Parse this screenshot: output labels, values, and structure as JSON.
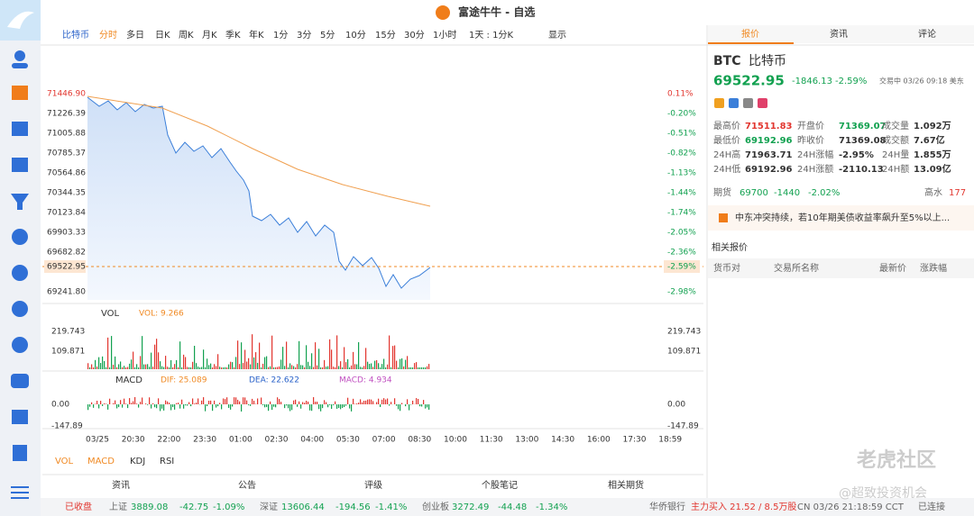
{
  "top_bar": {
    "title": "富途牛牛 - 自选"
  },
  "toolbar": {
    "symbol": "比特币",
    "items": [
      "分时",
      "多日",
      "日K",
      "周K",
      "月K",
      "季K",
      "年K",
      "1分",
      "3分",
      "5分",
      "10分",
      "15分",
      "30分",
      "1小时",
      "1天 : 1分K",
      "显示"
    ]
  },
  "chart": {
    "price_labels": [
      "71446.90",
      "71226.39",
      "71005.88",
      "70785.37",
      "70564.86",
      "70344.35",
      "70123.84",
      "69903.33",
      "69682.82",
      "69241.80"
    ],
    "pct_labels": [
      "0.11%",
      "-0.20%",
      "-0.51%",
      "-0.82%",
      "-1.13%",
      "-1.44%",
      "-1.74%",
      "-2.05%",
      "-2.36%",
      "-2.98%"
    ],
    "current_price": "69522.95",
    "current_pct": "-2.59%",
    "vol": {
      "name": "VOL",
      "value": "VOL: 9.266",
      "ticks": [
        "219.743",
        "109.871"
      ]
    },
    "macd": {
      "name": "MACD",
      "dif": "DIF: 25.089",
      "dea": "DEA: 22.622",
      "macd": "MACD: 4.934",
      "ticks": [
        "0.00",
        "-147.89"
      ]
    },
    "time_labels": [
      "03/25",
      "20:30",
      "22:00",
      "23:30",
      "01:00",
      "02:30",
      "04:00",
      "05:30",
      "07:00",
      "08:30",
      "10:00",
      "11:30",
      "13:00",
      "14:30",
      "16:00",
      "17:30",
      "18:59"
    ],
    "indicator_tabs": [
      "VOL",
      "MACD",
      "KDJ",
      "RSI"
    ]
  },
  "bottom_tabs": [
    "资讯",
    "公告",
    "评级",
    "个股笔记",
    "相关期货"
  ],
  "right_panel": {
    "tabs": [
      "报价",
      "资讯",
      "评论"
    ],
    "code": "BTC",
    "name": "比特币",
    "price": "69522.95",
    "change": "-1846.13",
    "change_pct": "-2.59%",
    "status": "交易中 03/26 09:18 美东",
    "stats": [
      [
        "最高价",
        "71511.83",
        "开盘价",
        "71369.07",
        "成交量",
        "1.092万"
      ],
      [
        "最低价",
        "69192.96",
        "昨收价",
        "71369.08",
        "成交额",
        "7.67亿"
      ],
      [
        "24H高",
        "71963.71",
        "24H涨幅",
        "-2.95%",
        "24H量",
        "1.855万"
      ],
      [
        "24H低",
        "69192.96",
        "24H涨额",
        "-2110.13",
        "24H额",
        "13.09亿"
      ]
    ],
    "futures": [
      "期货",
      "69700",
      "-1440",
      "-2.02%",
      "高水",
      "177"
    ],
    "news": "中东冲突持续，若10年期美债收益率飙升至5%以上...",
    "related_title": "相关报价",
    "related_headers": [
      "货币对",
      "交易所名称",
      "最新价",
      "涨跌幅"
    ]
  },
  "status_bar": {
    "items": [
      "已收盘",
      "上证",
      "3889.08",
      "-42.75",
      "-1.09%",
      "深证",
      "13606.44",
      "-194.56",
      "-1.41%",
      "创业板",
      "3272.49",
      "-44.48",
      "-1.34%",
      "华侨银行",
      "主力买入 21.52 / 8.5万股",
      "CN 03/26 21:18:59 CCT",
      "已连接"
    ]
  },
  "watermark": [
    "老虎社区",
    "@超致投资机会"
  ]
}
